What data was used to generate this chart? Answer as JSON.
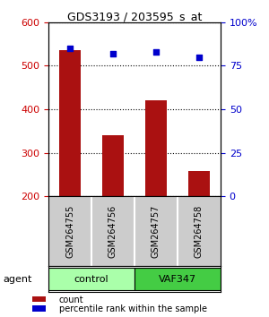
{
  "title": "GDS3193 / 203595_s_at",
  "samples": [
    "GSM264755",
    "GSM264756",
    "GSM264757",
    "GSM264758"
  ],
  "counts": [
    535,
    340,
    420,
    258
  ],
  "percentiles": [
    85,
    82,
    83,
    80
  ],
  "ymin": 200,
  "ymax": 600,
  "yticks_left": [
    200,
    300,
    400,
    500,
    600
  ],
  "yticks_right": [
    0,
    25,
    50,
    75,
    100
  ],
  "bar_color": "#aa1111",
  "dot_color": "#0000cc",
  "groups": [
    {
      "label": "control",
      "indices": [
        0,
        1
      ],
      "color": "#aaffaa"
    },
    {
      "label": "VAF347",
      "indices": [
        2,
        3
      ],
      "color": "#44cc44"
    }
  ],
  "agent_label": "agent",
  "legend_count_label": "count",
  "legend_pct_label": "percentile rank within the sample",
  "left_axis_color": "#cc0000",
  "right_axis_color": "#0000cc",
  "background_color": "#ffffff",
  "plot_bg_color": "#ffffff",
  "label_area_color": "#cccccc"
}
